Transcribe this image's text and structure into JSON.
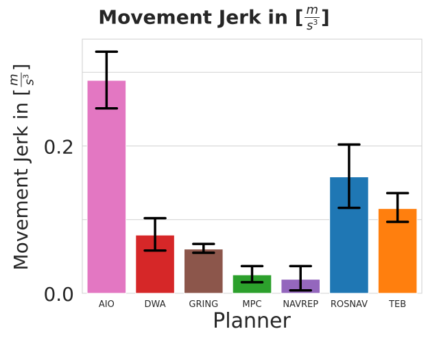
{
  "chart_data": {
    "type": "bar",
    "title": {
      "prefix": "Movement Jerk in [",
      "unit_num": "m",
      "unit_den": "s",
      "unit_den_exp": "3",
      "suffix": "]"
    },
    "xlabel": "Planner",
    "ylabel": {
      "prefix": "Movement Jerk in [",
      "unit_num": "m",
      "unit_den": "s",
      "unit_den_exp": "3",
      "suffix": "]"
    },
    "categories": [
      "AIO",
      "DWA",
      "GRING",
      "MPC",
      "NAVREP",
      "ROSNAV",
      "TEB"
    ],
    "values": [
      0.289,
      0.079,
      0.06,
      0.025,
      0.019,
      0.158,
      0.115
    ],
    "error_low": [
      0.251,
      0.058,
      0.055,
      0.015,
      0.004,
      0.116,
      0.097
    ],
    "error_high": [
      0.328,
      0.102,
      0.067,
      0.037,
      0.037,
      0.202,
      0.136
    ],
    "colors": [
      "#e377c2",
      "#d62728",
      "#8c564b",
      "#2ca02c",
      "#9467bd",
      "#1f77b4",
      "#ff7f0e"
    ],
    "ylim": [
      0,
      0.345
    ],
    "yticks": [
      0.0,
      0.2
    ],
    "ytick_labels": [
      "0.0",
      "0.2"
    ],
    "grid": true
  }
}
